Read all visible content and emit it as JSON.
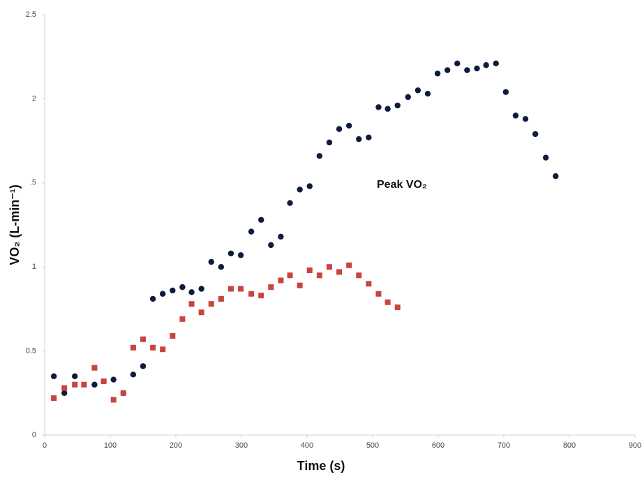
{
  "chart_data": {
    "type": "scatter",
    "x_label": "Time (s)",
    "y_label": "VO₂ (L-min⁻¹)",
    "annotation": "Peak VO₂",
    "xlim": [
      0,
      900
    ],
    "xticks": [
      0,
      100,
      200,
      300,
      400,
      500,
      600,
      700,
      800,
      900
    ],
    "ylim": [
      0,
      2.5
    ],
    "yticks": [
      0,
      0.5,
      1,
      {
        "value": 1.5,
        "label": ".5"
      },
      2,
      2.5
    ],
    "series": [
      {
        "color": "#0d1b3d",
        "marker": "circle",
        "x": [
          14,
          30,
          46,
          76,
          90,
          105,
          120,
          135,
          150,
          165,
          180,
          195,
          210,
          224,
          239,
          254,
          269,
          284,
          299,
          315,
          330,
          345,
          360,
          374,
          389,
          404,
          419,
          434,
          449,
          464,
          479,
          494,
          509,
          523,
          538,
          554,
          569,
          584,
          599,
          614,
          629,
          644,
          659,
          673,
          688,
          703,
          718,
          733,
          748,
          764,
          779
        ],
        "values": [
          0.35,
          0.25,
          0.35,
          0.3,
          0.32,
          0.33,
          0.25,
          0.36,
          0.41,
          0.81,
          0.84,
          0.86,
          0.88,
          0.85,
          0.87,
          1.03,
          1.0,
          1.08,
          1.07,
          1.21,
          1.28,
          1.13,
          1.18,
          1.38,
          1.46,
          1.48,
          1.66,
          1.74,
          1.82,
          1.84,
          1.76,
          1.77,
          1.95,
          1.94,
          1.96,
          2.01,
          2.05,
          2.03,
          2.15,
          2.17,
          2.21,
          2.17,
          2.18,
          2.2,
          2.21,
          2.04,
          1.9,
          1.88,
          1.79,
          1.65,
          1.54
        ]
      },
      {
        "color": "#c9443f",
        "marker": "square",
        "x": [
          14,
          30,
          46,
          60,
          76,
          90,
          105,
          120,
          135,
          150,
          165,
          180,
          195,
          210,
          224,
          239,
          254,
          269,
          284,
          299,
          315,
          330,
          345,
          360,
          374,
          389,
          404,
          419,
          434,
          449,
          464,
          479,
          494,
          509,
          523,
          538
        ],
        "values": [
          0.22,
          0.28,
          0.3,
          0.3,
          0.4,
          0.32,
          0.21,
          0.25,
          0.52,
          0.57,
          0.52,
          0.51,
          0.59,
          0.69,
          0.78,
          0.73,
          0.78,
          0.81,
          0.87,
          0.87,
          0.84,
          0.83,
          0.88,
          0.92,
          0.95,
          0.89,
          0.98,
          0.95,
          1.0,
          0.97,
          1.01,
          0.95,
          0.9,
          0.84,
          0.79,
          0.76
        ]
      }
    ]
  }
}
